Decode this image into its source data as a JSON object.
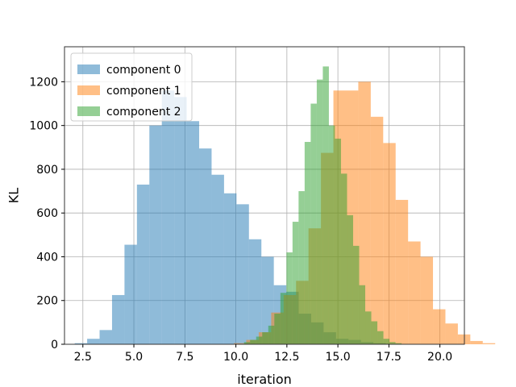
{
  "chart_data": {
    "type": "histogram",
    "xlabel": "iteration",
    "ylabel": "KL",
    "xlim": [
      1.6,
      21.2
    ],
    "ylim": [
      0,
      1360
    ],
    "xticks": [
      2.5,
      5.0,
      7.5,
      10.0,
      12.5,
      15.0,
      17.5,
      20.0
    ],
    "xtick_labels": [
      "2.5",
      "5.0",
      "7.5",
      "10.0",
      "12.5",
      "15.0",
      "17.5",
      "20.0"
    ],
    "yticks": [
      0,
      200,
      400,
      600,
      800,
      1000,
      1200
    ],
    "ytick_labels": [
      "0",
      "200",
      "400",
      "600",
      "800",
      "1000",
      "1200"
    ],
    "grid": true,
    "legend": "top-left",
    "bar_alpha": 0.5,
    "series": [
      {
        "name": "component 0",
        "color": "#1f77b4",
        "bin_start": 2.1,
        "bin_width": 0.61,
        "values": [
          5,
          25,
          65,
          225,
          455,
          730,
          1000,
          1160,
          1130,
          1020,
          895,
          775,
          690,
          640,
          480,
          400,
          270,
          240,
          140,
          100,
          55,
          25,
          20,
          10,
          5,
          2
        ]
      },
      {
        "name": "component 1",
        "color": "#ff7f0e",
        "bin_start": 9.9,
        "bin_width": 0.61,
        "values": [
          5,
          20,
          55,
          145,
          225,
          290,
          530,
          875,
          1160,
          1160,
          1200,
          1040,
          920,
          660,
          470,
          400,
          160,
          95,
          45,
          15,
          5
        ]
      },
      {
        "name": "component 2",
        "color": "#2ca02c",
        "bin_start": 10.4,
        "bin_width": 0.297,
        "values": [
          10,
          20,
          35,
          55,
          85,
          140,
          235,
          420,
          560,
          700,
          925,
          1100,
          1210,
          1270,
          1000,
          940,
          780,
          590,
          450,
          270,
          150,
          105,
          60,
          25,
          10,
          5
        ]
      }
    ]
  }
}
